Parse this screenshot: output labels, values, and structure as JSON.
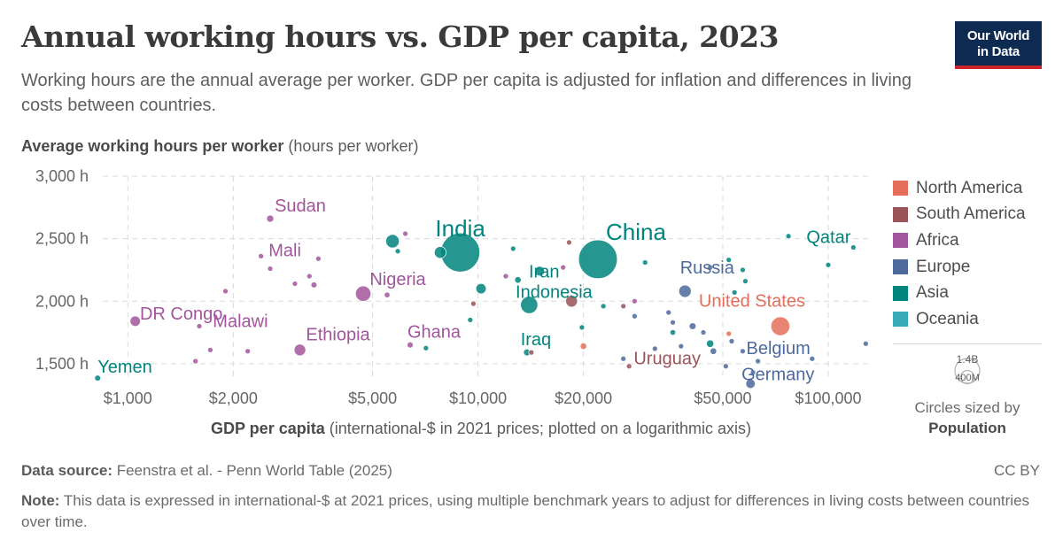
{
  "title": "Annual working hours vs. GDP per capita, 2023",
  "subtitle": "Working hours are the annual average per worker. GDP per capita is adjusted for inflation and differences in living costs between countries.",
  "logo": {
    "line1": "Our World",
    "line2": "in Data"
  },
  "y_title_bold": "Average working hours per worker",
  "y_title_unit": " (hours per worker)",
  "x_title_bold": "GDP per capita",
  "x_title_unit": " (international-$ in 2021 prices; plotted on a logarithmic axis)",
  "legend": [
    {
      "label": "North America",
      "color": "#e56e5a"
    },
    {
      "label": "South America",
      "color": "#9a5357"
    },
    {
      "label": "Africa",
      "color": "#a2559c"
    },
    {
      "label": "Europe",
      "color": "#4c6a9c"
    },
    {
      "label": "Asia",
      "color": "#00847e"
    },
    {
      "label": "Oceania",
      "color": "#38aaba"
    }
  ],
  "size_legend": {
    "large": "1.4B",
    "small": "400M",
    "caption_line1": "Circles sized by",
    "caption_line2": "Population"
  },
  "source_label": "Data source:",
  "source_text": " Feenstra et al. - Penn World Table (2025)",
  "license": "CC BY",
  "note_label": "Note:",
  "note_text": " This data is expressed in international-$ at 2021 prices, using multiple benchmark years to adjust for differences in living costs between countries over time.",
  "chart_data": {
    "type": "scatter",
    "x_scale": "log",
    "xlim": [
      800,
      130000
    ],
    "ylim": [
      1400,
      3000
    ],
    "x_ticks": [
      {
        "value": 1000,
        "label": "$1,000"
      },
      {
        "value": 2000,
        "label": "$2,000"
      },
      {
        "value": 5000,
        "label": "$5,000"
      },
      {
        "value": 10000,
        "label": "$10,000"
      },
      {
        "value": 20000,
        "label": "$20,000"
      },
      {
        "value": 50000,
        "label": "$50,000"
      },
      {
        "value": 100000,
        "label": "$100,000"
      }
    ],
    "y_ticks": [
      {
        "value": 1500,
        "label": "1,500 h"
      },
      {
        "value": 2000,
        "label": "2,000 h"
      },
      {
        "value": 2500,
        "label": "2,500 h"
      },
      {
        "value": 3000,
        "label": "3,000 h"
      }
    ],
    "grid": true,
    "legend_position": "right",
    "size_by": "Population",
    "points": [
      {
        "label": "India",
        "region": "Asia",
        "x": 8900,
        "y": 2390,
        "pop": 1430
      },
      {
        "label": "China",
        "region": "Asia",
        "x": 22000,
        "y": 2335,
        "pop": 1410
      },
      {
        "label": "Indonesia",
        "region": "Asia",
        "x": 14000,
        "y": 1970,
        "pop": 278
      },
      {
        "label": "Iran",
        "region": "Asia",
        "x": 15000,
        "y": 2240,
        "pop": 90
      },
      {
        "label": "Iraq",
        "region": "Asia",
        "x": 13800,
        "y": 1590,
        "pop": 45
      },
      {
        "label": "Yemen",
        "region": "Asia",
        "x": 820,
        "y": 1385,
        "pop": 34
      },
      {
        "label": "Qatar",
        "region": "Asia",
        "x": 118000,
        "y": 2430,
        "pop": 3
      },
      {
        "label": "United States",
        "region": "North America",
        "x": 73000,
        "y": 1800,
        "pop": 335
      },
      {
        "label": "Russia",
        "region": "Europe",
        "x": 39000,
        "y": 2080,
        "pop": 144
      },
      {
        "label": "Belgium",
        "region": "Europe",
        "x": 63000,
        "y": 1520,
        "pop": 12
      },
      {
        "label": "Germany",
        "region": "Europe",
        "x": 60000,
        "y": 1340,
        "pop": 84
      },
      {
        "label": "Uruguay",
        "region": "South America",
        "x": 27000,
        "y": 1480,
        "pop": 3.4
      },
      {
        "label": "Sudan",
        "region": "Africa",
        "x": 2550,
        "y": 2660,
        "pop": 48
      },
      {
        "label": "Mali",
        "region": "Africa",
        "x": 2400,
        "y": 2360,
        "pop": 23
      },
      {
        "label": "Nigeria",
        "region": "Africa",
        "x": 4700,
        "y": 2060,
        "pop": 224
      },
      {
        "label": "DR Congo",
        "region": "Africa",
        "x": 1050,
        "y": 1840,
        "pop": 102
      },
      {
        "label": "Malawi",
        "region": "Africa",
        "x": 1720,
        "y": 1610,
        "pop": 20
      },
      {
        "label": "Ethiopia",
        "region": "Africa",
        "x": 3100,
        "y": 1610,
        "pop": 126
      },
      {
        "label": "Ghana",
        "region": "Africa",
        "x": 6400,
        "y": 1650,
        "pop": 34
      },
      {
        "label": "",
        "region": "Asia",
        "x": 5700,
        "y": 2480,
        "pop": 170
      },
      {
        "label": "",
        "region": "Asia",
        "x": 7800,
        "y": 2390,
        "pop": 130
      },
      {
        "label": "",
        "region": "Asia",
        "x": 10200,
        "y": 2100,
        "pop": 100
      },
      {
        "label": "",
        "region": "Asia",
        "x": 13000,
        "y": 2170,
        "pop": 40
      },
      {
        "label": "",
        "region": "Asia",
        "x": 46000,
        "y": 1660,
        "pop": 52
      },
      {
        "label": "",
        "region": "Asia",
        "x": 36000,
        "y": 1750,
        "pop": 30
      },
      {
        "label": "",
        "region": "Asia",
        "x": 30000,
        "y": 2310,
        "pop": 10
      },
      {
        "label": "",
        "region": "Asia",
        "x": 52000,
        "y": 2330,
        "pop": 8
      },
      {
        "label": "",
        "region": "Asia",
        "x": 57000,
        "y": 2250,
        "pop": 8
      },
      {
        "label": "",
        "region": "Asia",
        "x": 77000,
        "y": 2520,
        "pop": 4
      },
      {
        "label": "",
        "region": "Asia",
        "x": 100000,
        "y": 2290,
        "pop": 5
      },
      {
        "label": "",
        "region": "Asia",
        "x": 9500,
        "y": 1850,
        "pop": 10
      },
      {
        "label": "",
        "region": "Asia",
        "x": 7100,
        "y": 1625,
        "pop": 8
      },
      {
        "label": "",
        "region": "Asia",
        "x": 5900,
        "y": 2400,
        "pop": 8
      },
      {
        "label": "",
        "region": "Asia",
        "x": 12600,
        "y": 2420,
        "pop": 5
      },
      {
        "label": "",
        "region": "Asia",
        "x": 19800,
        "y": 1790,
        "pop": 4
      },
      {
        "label": "",
        "region": "Asia",
        "x": 22800,
        "y": 1960,
        "pop": 10
      },
      {
        "label": "",
        "region": "Asia",
        "x": 54000,
        "y": 2070,
        "pop": 5
      },
      {
        "label": "",
        "region": "Asia",
        "x": 58000,
        "y": 2160,
        "pop": 4
      },
      {
        "label": "",
        "region": "North America",
        "x": 20000,
        "y": 1640,
        "pop": 40
      },
      {
        "label": "",
        "region": "North America",
        "x": 52000,
        "y": 1740,
        "pop": 6
      },
      {
        "label": "",
        "region": "South America",
        "x": 18500,
        "y": 2000,
        "pop": 130
      },
      {
        "label": "",
        "region": "South America",
        "x": 18200,
        "y": 2470,
        "pop": 20
      },
      {
        "label": "",
        "region": "South America",
        "x": 14200,
        "y": 1590,
        "pop": 6
      },
      {
        "label": "",
        "region": "South America",
        "x": 9700,
        "y": 1980,
        "pop": 8
      },
      {
        "label": "",
        "region": "South America",
        "x": 26000,
        "y": 1960,
        "pop": 12
      },
      {
        "label": "",
        "region": "Africa",
        "x": 3400,
        "y": 2130,
        "pop": 34
      },
      {
        "label": "",
        "region": "Africa",
        "x": 5500,
        "y": 2050,
        "pop": 30
      },
      {
        "label": "",
        "region": "Africa",
        "x": 6200,
        "y": 2540,
        "pop": 8
      },
      {
        "label": "",
        "region": "Africa",
        "x": 1560,
        "y": 1520,
        "pop": 8
      },
      {
        "label": "",
        "region": "Africa",
        "x": 1600,
        "y": 1800,
        "pop": 8
      },
      {
        "label": "",
        "region": "Africa",
        "x": 1900,
        "y": 2080,
        "pop": 8
      },
      {
        "label": "",
        "region": "Africa",
        "x": 3000,
        "y": 2140,
        "pop": 10
      },
      {
        "label": "",
        "region": "Africa",
        "x": 3300,
        "y": 2200,
        "pop": 6
      },
      {
        "label": "",
        "region": "Africa",
        "x": 3500,
        "y": 2340,
        "pop": 6
      },
      {
        "label": "",
        "region": "Africa",
        "x": 2200,
        "y": 1600,
        "pop": 6
      },
      {
        "label": "",
        "region": "Africa",
        "x": 12000,
        "y": 2200,
        "pop": 10
      },
      {
        "label": "",
        "region": "Africa",
        "x": 17500,
        "y": 2270,
        "pop": 6
      },
      {
        "label": "",
        "region": "Africa",
        "x": 28000,
        "y": 2000,
        "pop": 4
      },
      {
        "label": "",
        "region": "Africa",
        "x": 2550,
        "y": 2260,
        "pop": 6
      },
      {
        "label": "",
        "region": "Europe",
        "x": 41000,
        "y": 1800,
        "pop": 45
      },
      {
        "label": "",
        "region": "Europe",
        "x": 47000,
        "y": 1600,
        "pop": 40
      },
      {
        "label": "",
        "region": "Europe",
        "x": 36000,
        "y": 1830,
        "pop": 12
      },
      {
        "label": "",
        "region": "Europe",
        "x": 28000,
        "y": 1880,
        "pop": 10
      },
      {
        "label": "",
        "region": "Europe",
        "x": 32000,
        "y": 1620,
        "pop": 10
      },
      {
        "label": "",
        "region": "Europe",
        "x": 38000,
        "y": 1640,
        "pop": 10
      },
      {
        "label": "",
        "region": "Europe",
        "x": 44000,
        "y": 1750,
        "pop": 8
      },
      {
        "label": "",
        "region": "Europe",
        "x": 53000,
        "y": 1680,
        "pop": 8
      },
      {
        "label": "",
        "region": "Europe",
        "x": 57000,
        "y": 1600,
        "pop": 8
      },
      {
        "label": "",
        "region": "Europe",
        "x": 90000,
        "y": 1540,
        "pop": 5
      },
      {
        "label": "",
        "region": "Europe",
        "x": 128000,
        "y": 1660,
        "pop": 6
      },
      {
        "label": "",
        "region": "Europe",
        "x": 35000,
        "y": 1910,
        "pop": 6
      },
      {
        "label": "",
        "region": "Europe",
        "x": 46000,
        "y": 2270,
        "pop": 4
      },
      {
        "label": "",
        "region": "Europe",
        "x": 61000,
        "y": 1430,
        "pop": 6
      },
      {
        "label": "",
        "region": "Europe",
        "x": 51000,
        "y": 1480,
        "pop": 17
      },
      {
        "label": "",
        "region": "Europe",
        "x": 26000,
        "y": 1540,
        "pop": 6
      }
    ]
  }
}
